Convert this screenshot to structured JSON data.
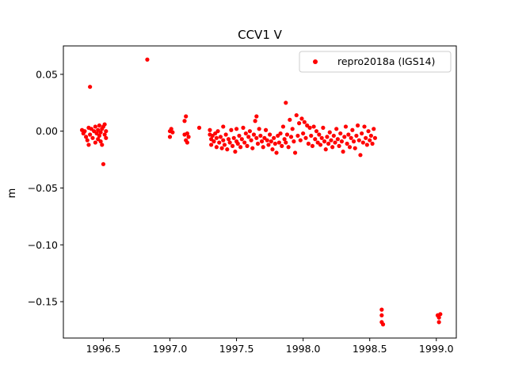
{
  "chart_data": {
    "type": "scatter",
    "title": "CCV1 V",
    "xlabel": "",
    "ylabel": "m",
    "xlim": [
      1996.2,
      1999.15
    ],
    "ylim": [
      -0.182,
      0.075
    ],
    "xticks": [
      1996.5,
      1997.0,
      1997.5,
      1998.0,
      1998.5,
      1999.0
    ],
    "xtick_labels": [
      "1996.5",
      "1997.0",
      "1997.5",
      "1998.0",
      "1998.5",
      "1999.0"
    ],
    "yticks": [
      0.05,
      0.0,
      -0.05,
      -0.1,
      -0.15
    ],
    "ytick_labels": [
      "0.05",
      "0.00",
      "−0.05",
      "−0.10",
      "−0.15"
    ],
    "grid": false,
    "legend": {
      "position": "top-right",
      "entries": [
        "repro2018a (IGS14)"
      ]
    },
    "series": [
      {
        "name": "repro2018a (IGS14)",
        "color": "#ff0000",
        "marker": "circle",
        "points": [
          [
            1996.34,
            0.001
          ],
          [
            1996.35,
            -0.002
          ],
          [
            1996.36,
            0.0
          ],
          [
            1996.37,
            -0.005
          ],
          [
            1996.38,
            -0.008
          ],
          [
            1996.39,
            0.003
          ],
          [
            1996.39,
            -0.012
          ],
          [
            1996.4,
            0.039
          ],
          [
            1996.4,
            -0.003
          ],
          [
            1996.41,
            0.002
          ],
          [
            1996.42,
            -0.006
          ],
          [
            1996.43,
            0.0
          ],
          [
            1996.44,
            -0.01
          ],
          [
            1996.44,
            0.004
          ],
          [
            1996.45,
            -0.002
          ],
          [
            1996.46,
            -0.007
          ],
          [
            1996.46,
            0.001
          ],
          [
            1996.47,
            -0.004
          ],
          [
            1996.47,
            0.005
          ],
          [
            1996.48,
            -0.001
          ],
          [
            1996.48,
            -0.009
          ],
          [
            1996.49,
            0.002
          ],
          [
            1996.49,
            -0.012
          ],
          [
            1996.5,
            -0.029
          ],
          [
            1996.5,
            0.004
          ],
          [
            1996.51,
            -0.003
          ],
          [
            1996.51,
            0.006
          ],
          [
            1996.52,
            -0.006
          ],
          [
            1996.52,
            0.0
          ],
          [
            1996.83,
            0.063
          ],
          [
            1997.0,
            0.0
          ],
          [
            1997.0,
            -0.005
          ],
          [
            1997.01,
            0.002
          ],
          [
            1997.02,
            -0.001
          ],
          [
            1997.11,
            0.009
          ],
          [
            1997.11,
            -0.003
          ],
          [
            1997.12,
            0.013
          ],
          [
            1997.12,
            -0.008
          ],
          [
            1997.13,
            -0.002
          ],
          [
            1997.13,
            -0.01
          ],
          [
            1997.14,
            -0.005
          ],
          [
            1997.22,
            0.003
          ],
          [
            1997.3,
            -0.003
          ],
          [
            1997.3,
            0.001
          ],
          [
            1997.31,
            -0.007
          ],
          [
            1997.31,
            -0.012
          ],
          [
            1997.32,
            -0.004
          ],
          [
            1997.33,
            -0.009
          ],
          [
            1997.34,
            -0.002
          ],
          [
            1997.35,
            -0.014
          ],
          [
            1997.35,
            -0.006
          ],
          [
            1997.36,
            0.0
          ],
          [
            1997.37,
            -0.01
          ],
          [
            1997.38,
            -0.005
          ],
          [
            1997.39,
            -0.015
          ],
          [
            1997.4,
            -0.008
          ],
          [
            1997.4,
            0.004
          ],
          [
            1997.41,
            -0.012
          ],
          [
            1997.42,
            -0.003
          ],
          [
            1997.43,
            -0.016
          ],
          [
            1997.44,
            -0.007
          ],
          [
            1997.45,
            -0.01
          ],
          [
            1997.46,
            0.001
          ],
          [
            1997.47,
            -0.013
          ],
          [
            1997.48,
            -0.006
          ],
          [
            1997.49,
            -0.018
          ],
          [
            1997.5,
            -0.009
          ],
          [
            1997.5,
            0.002
          ],
          [
            1997.51,
            -0.011
          ],
          [
            1997.52,
            -0.004
          ],
          [
            1997.53,
            -0.014
          ],
          [
            1997.54,
            -0.007
          ],
          [
            1997.55,
            0.003
          ],
          [
            1997.56,
            -0.01
          ],
          [
            1997.57,
            -0.002
          ],
          [
            1997.58,
            -0.013
          ],
          [
            1997.59,
            -0.005
          ],
          [
            1997.6,
            0.0
          ],
          [
            1997.61,
            -0.008
          ],
          [
            1997.62,
            -0.015
          ],
          [
            1997.63,
            -0.003
          ],
          [
            1997.64,
            0.009
          ],
          [
            1997.65,
            0.013
          ],
          [
            1997.65,
            -0.006
          ],
          [
            1997.66,
            -0.011
          ],
          [
            1997.67,
            0.002
          ],
          [
            1997.68,
            -0.004
          ],
          [
            1997.69,
            -0.009
          ],
          [
            1997.7,
            -0.014
          ],
          [
            1997.71,
            -0.006
          ],
          [
            1997.72,
            0.001
          ],
          [
            1997.73,
            -0.008
          ],
          [
            1997.74,
            -0.012
          ],
          [
            1997.75,
            -0.003
          ],
          [
            1997.76,
            -0.009
          ],
          [
            1997.77,
            -0.016
          ],
          [
            1997.78,
            -0.006
          ],
          [
            1997.79,
            -0.011
          ],
          [
            1997.8,
            -0.019
          ],
          [
            1997.81,
            -0.004
          ],
          [
            1997.82,
            -0.01
          ],
          [
            1997.83,
            -0.002
          ],
          [
            1997.84,
            -0.013
          ],
          [
            1997.85,
            0.004
          ],
          [
            1997.86,
            -0.007
          ],
          [
            1997.87,
            0.025
          ],
          [
            1997.87,
            -0.01
          ],
          [
            1997.88,
            -0.003
          ],
          [
            1997.89,
            -0.014
          ],
          [
            1997.9,
            0.01
          ],
          [
            1997.91,
            -0.005
          ],
          [
            1997.92,
            0.002
          ],
          [
            1997.93,
            -0.009
          ],
          [
            1997.94,
            -0.019
          ],
          [
            1997.95,
            0.014
          ],
          [
            1997.96,
            -0.004
          ],
          [
            1997.97,
            0.007
          ],
          [
            1997.98,
            -0.008
          ],
          [
            1997.99,
            0.011
          ],
          [
            1998.0,
            -0.002
          ],
          [
            1998.01,
            0.008
          ],
          [
            1998.02,
            -0.006
          ],
          [
            1998.03,
            0.005
          ],
          [
            1998.04,
            -0.011
          ],
          [
            1998.05,
            0.003
          ],
          [
            1998.06,
            -0.004
          ],
          [
            1998.07,
            -0.013
          ],
          [
            1998.08,
            0.004
          ],
          [
            1998.09,
            -0.007
          ],
          [
            1998.1,
            0.0
          ],
          [
            1998.11,
            -0.01
          ],
          [
            1998.12,
            -0.003
          ],
          [
            1998.13,
            -0.012
          ],
          [
            1998.14,
            -0.006
          ],
          [
            1998.15,
            0.003
          ],
          [
            1998.16,
            -0.009
          ],
          [
            1998.17,
            -0.016
          ],
          [
            1998.18,
            -0.005
          ],
          [
            1998.19,
            -0.011
          ],
          [
            1998.2,
            -0.001
          ],
          [
            1998.21,
            -0.008
          ],
          [
            1998.22,
            -0.014
          ],
          [
            1998.23,
            -0.004
          ],
          [
            1998.24,
            -0.01
          ],
          [
            1998.25,
            0.002
          ],
          [
            1998.26,
            -0.007
          ],
          [
            1998.27,
            -0.013
          ],
          [
            1998.28,
            -0.002
          ],
          [
            1998.29,
            -0.009
          ],
          [
            1998.3,
            -0.018
          ],
          [
            1998.31,
            -0.005
          ],
          [
            1998.32,
            0.004
          ],
          [
            1998.33,
            -0.011
          ],
          [
            1998.34,
            -0.003
          ],
          [
            1998.35,
            -0.014
          ],
          [
            1998.36,
            -0.006
          ],
          [
            1998.37,
            0.001
          ],
          [
            1998.38,
            -0.009
          ],
          [
            1998.39,
            -0.015
          ],
          [
            1998.4,
            -0.004
          ],
          [
            1998.41,
            0.005
          ],
          [
            1998.42,
            -0.008
          ],
          [
            1998.43,
            -0.021
          ],
          [
            1998.44,
            -0.002
          ],
          [
            1998.45,
            -0.01
          ],
          [
            1998.46,
            0.004
          ],
          [
            1998.47,
            -0.006
          ],
          [
            1998.48,
            -0.012
          ],
          [
            1998.49,
            0.0
          ],
          [
            1998.5,
            -0.008
          ],
          [
            1998.51,
            -0.004
          ],
          [
            1998.52,
            -0.011
          ],
          [
            1998.53,
            0.002
          ],
          [
            1998.54,
            -0.006
          ],
          [
            1998.59,
            -0.157
          ],
          [
            1998.59,
            -0.162
          ],
          [
            1998.59,
            -0.168
          ],
          [
            1998.6,
            -0.17
          ],
          [
            1999.01,
            -0.162
          ],
          [
            1999.02,
            -0.164
          ],
          [
            1999.02,
            -0.168
          ],
          [
            1999.03,
            -0.161
          ]
        ]
      }
    ]
  }
}
